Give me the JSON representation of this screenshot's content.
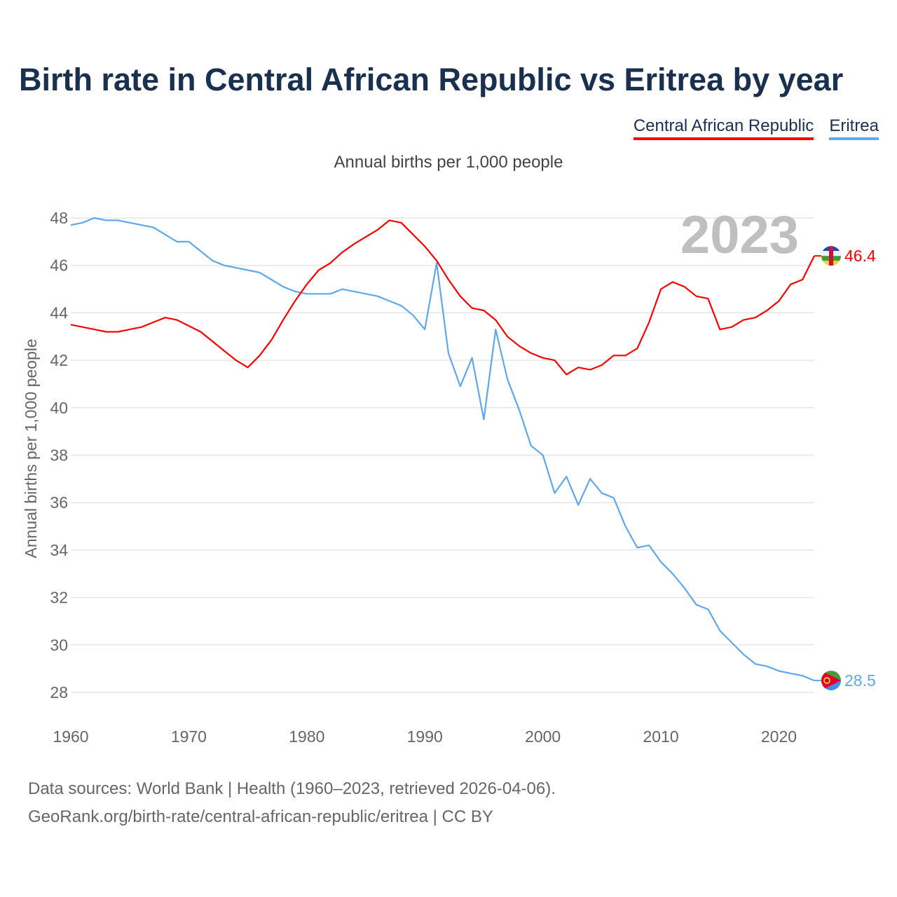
{
  "title": "Birth rate in Central African Republic vs Eritrea by year",
  "legend": [
    "Central African Republic",
    "Eritrea"
  ],
  "subtitle": "Annual births per 1,000 people",
  "year_overlay": "2023",
  "footer": {
    "line1": "Data sources: World Bank | Health (1960–2023, retrieved 2026-04-06).",
    "line2": "GeoRank.org/birth-rate/central-african-republic/eritrea | CC BY"
  },
  "colors": {
    "car": "#ff0000",
    "eritrea": "#5da8ee"
  },
  "chart_data": {
    "type": "line",
    "title": "Birth rate in Central African Republic vs Eritrea by year",
    "xlabel": "",
    "ylabel": "Annual births per 1,000 people",
    "xlim": [
      1960,
      2023
    ],
    "ylim": [
      28,
      48
    ],
    "x_ticks": [
      "1960",
      "1970",
      "1980",
      "1990",
      "2000",
      "2010",
      "2020"
    ],
    "y_ticks": [
      "28",
      "30",
      "32",
      "34",
      "36",
      "38",
      "40",
      "42",
      "44",
      "46",
      "48"
    ],
    "grid": true,
    "legend_position": "top-right",
    "x": [
      1960,
      1961,
      1962,
      1963,
      1964,
      1965,
      1966,
      1967,
      1968,
      1969,
      1970,
      1971,
      1972,
      1973,
      1974,
      1975,
      1976,
      1977,
      1978,
      1979,
      1980,
      1981,
      1982,
      1983,
      1984,
      1985,
      1986,
      1987,
      1988,
      1989,
      1990,
      1991,
      1992,
      1993,
      1994,
      1995,
      1996,
      1997,
      1998,
      1999,
      2000,
      2001,
      2002,
      2003,
      2004,
      2005,
      2006,
      2007,
      2008,
      2009,
      2010,
      2011,
      2012,
      2013,
      2014,
      2015,
      2016,
      2017,
      2018,
      2019,
      2020,
      2021,
      2022,
      2023
    ],
    "series": [
      {
        "name": "Central African Republic",
        "end_label": "46.4",
        "values": [
          43.5,
          43.4,
          43.3,
          43.2,
          43.2,
          43.3,
          43.4,
          43.6,
          43.8,
          43.7,
          43.45,
          43.2,
          42.8,
          42.4,
          42.0,
          41.7,
          42.2,
          42.85,
          43.7,
          44.5,
          45.2,
          45.8,
          46.1,
          46.55,
          46.9,
          47.2,
          47.5,
          47.9,
          47.8,
          47.3,
          46.8,
          46.2,
          45.4,
          44.7,
          44.2,
          44.1,
          43.7,
          43.0,
          42.6,
          42.3,
          42.1,
          42.0,
          41.4,
          41.7,
          41.6,
          41.8,
          42.2,
          42.2,
          42.5,
          43.6,
          45.0,
          45.3,
          45.1,
          44.7,
          44.6,
          43.3,
          43.4,
          43.7,
          43.8,
          44.1,
          44.5,
          45.2,
          45.4,
          46.4
        ]
      },
      {
        "name": "Eritrea",
        "end_label": "28.5",
        "values": [
          47.7,
          47.8,
          48.0,
          47.9,
          47.9,
          47.8,
          47.7,
          47.6,
          47.3,
          47.0,
          47.0,
          46.6,
          46.2,
          46.0,
          45.9,
          45.8,
          45.7,
          45.4,
          45.1,
          44.9,
          44.8,
          44.8,
          44.8,
          45.0,
          44.9,
          44.8,
          44.7,
          44.5,
          44.3,
          43.9,
          43.3,
          46.1,
          42.3,
          40.9,
          42.1,
          39.5,
          43.3,
          41.2,
          39.9,
          38.4,
          38.0,
          36.4,
          37.1,
          35.9,
          37.0,
          36.4,
          36.2,
          35.0,
          34.1,
          34.2,
          33.5,
          33.0,
          32.4,
          31.7,
          31.5,
          30.6,
          30.1,
          29.6,
          29.2,
          29.1,
          28.9,
          28.8,
          28.7,
          28.5
        ]
      }
    ]
  }
}
